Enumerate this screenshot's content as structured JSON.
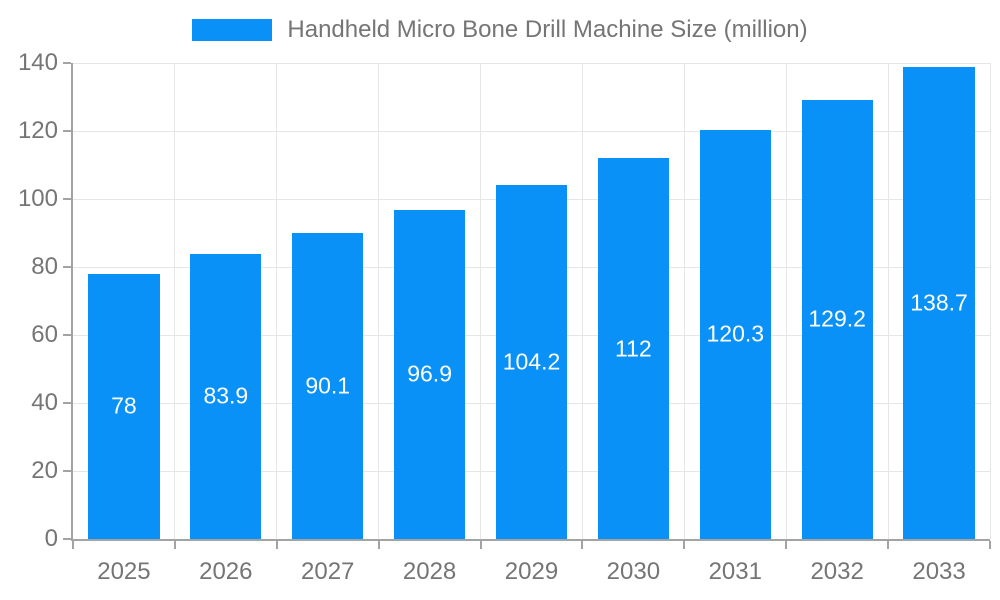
{
  "chart_data": {
    "type": "bar",
    "title": "Handheld Micro Bone Drill Machine Size (million)",
    "legend_position": "top-center",
    "categories": [
      "2025",
      "2026",
      "2027",
      "2028",
      "2029",
      "2030",
      "2031",
      "2032",
      "2033"
    ],
    "values": [
      78,
      83.9,
      90.1,
      96.9,
      104.2,
      112,
      120.3,
      129.2,
      138.7
    ],
    "value_labels": [
      "78",
      "83.9",
      "90.1",
      "96.9",
      "104.2",
      "112",
      "120.3",
      "129.2",
      "138.7"
    ],
    "yticks": [
      0,
      20,
      40,
      60,
      80,
      100,
      120,
      140
    ],
    "ylim": [
      0,
      140
    ],
    "xlabel": "",
    "ylabel": "",
    "grid": true,
    "colors": {
      "bar": "#0991f7",
      "axis": "#a3a3a3",
      "grid": "#e6e6e6",
      "tick_text": "#757575",
      "bar_label": "#ffffff",
      "background": "#ffffff"
    }
  }
}
